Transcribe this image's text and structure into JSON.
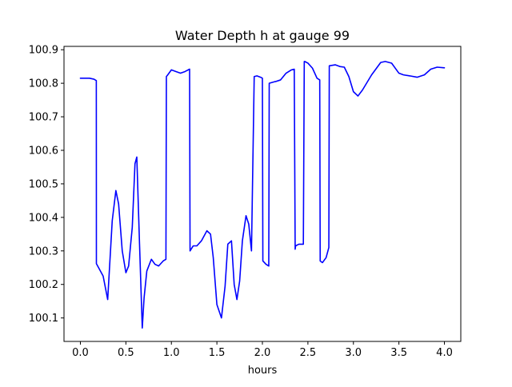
{
  "chart_data": {
    "type": "line",
    "title": "Water Depth h at gauge 99",
    "xlabel": "hours",
    "ylabel": "",
    "xlim": [
      -0.18,
      4.18
    ],
    "ylim": [
      100.03,
      100.91
    ],
    "xticks": [
      0.0,
      0.5,
      1.0,
      1.5,
      2.0,
      2.5,
      3.0,
      3.5,
      4.0
    ],
    "xtick_labels": [
      "0.0",
      "0.5",
      "1.0",
      "1.5",
      "2.0",
      "2.5",
      "3.0",
      "3.5",
      "4.0"
    ],
    "yticks": [
      100.1,
      100.2,
      100.3,
      100.4,
      100.5,
      100.6,
      100.7,
      100.8,
      100.9
    ],
    "ytick_labels": [
      "100.1",
      "100.2",
      "100.3",
      "100.4",
      "100.5",
      "100.6",
      "100.7",
      "100.8",
      "100.9"
    ],
    "grid": false,
    "legend": "none",
    "series": [
      {
        "color": "#0000ff",
        "x": [
          0.0,
          0.1,
          0.15,
          0.175,
          0.176,
          0.2,
          0.25,
          0.3,
          0.35,
          0.39,
          0.42,
          0.46,
          0.5,
          0.53,
          0.57,
          0.6,
          0.62,
          0.65,
          0.68,
          0.7,
          0.73,
          0.78,
          0.82,
          0.86,
          0.91,
          0.94,
          0.945,
          0.96,
          1.0,
          1.05,
          1.1,
          1.15,
          1.2,
          1.205,
          1.24,
          1.28,
          1.33,
          1.39,
          1.43,
          1.46,
          1.5,
          1.55,
          1.59,
          1.62,
          1.66,
          1.69,
          1.72,
          1.75,
          1.78,
          1.82,
          1.85,
          1.88,
          1.91,
          1.94,
          1.98,
          2.0,
          2.005,
          2.04,
          2.07,
          2.075,
          2.14,
          2.145,
          2.2,
          2.26,
          2.32,
          2.35,
          2.36,
          2.365,
          2.4,
          2.45,
          2.46,
          2.465,
          2.5,
          2.55,
          2.6,
          2.63,
          2.635,
          2.66,
          2.7,
          2.73,
          2.735,
          2.8,
          2.85,
          2.9,
          2.95,
          3.0,
          3.05,
          3.1,
          3.2,
          3.3,
          3.35,
          3.42,
          3.5,
          3.55,
          3.62,
          3.7,
          3.78,
          3.85,
          3.92,
          4.0
        ],
        "y": [
          100.815,
          100.815,
          100.812,
          100.808,
          100.262,
          100.25,
          100.225,
          100.155,
          100.39,
          100.48,
          100.44,
          100.3,
          100.235,
          100.255,
          100.37,
          100.56,
          100.58,
          100.32,
          100.07,
          100.16,
          100.24,
          100.275,
          100.26,
          100.255,
          100.27,
          100.275,
          100.82,
          100.825,
          100.84,
          100.835,
          100.83,
          100.835,
          100.842,
          100.3,
          100.315,
          100.315,
          100.33,
          100.36,
          100.35,
          100.28,
          100.14,
          100.1,
          100.195,
          100.32,
          100.33,
          100.2,
          100.155,
          100.21,
          100.33,
          100.405,
          100.38,
          100.3,
          100.82,
          100.822,
          100.818,
          100.815,
          100.27,
          100.26,
          100.255,
          100.8,
          100.805,
          100.805,
          100.81,
          100.83,
          100.84,
          100.842,
          100.305,
          100.315,
          100.32,
          100.32,
          100.865,
          100.865,
          100.86,
          100.845,
          100.815,
          100.81,
          100.27,
          100.265,
          100.28,
          100.31,
          100.852,
          100.855,
          100.85,
          100.848,
          100.82,
          100.775,
          100.762,
          100.78,
          100.825,
          100.862,
          100.865,
          100.86,
          100.83,
          100.825,
          100.822,
          100.818,
          100.825,
          100.842,
          100.848,
          100.846
        ]
      }
    ]
  }
}
